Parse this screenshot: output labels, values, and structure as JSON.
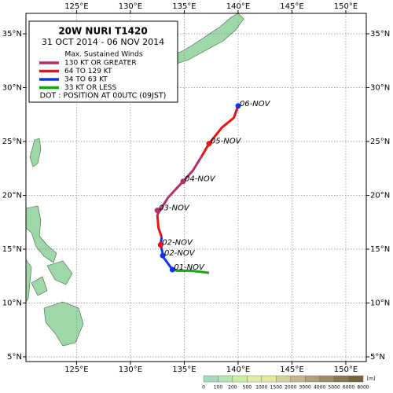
{
  "map": {
    "title": "20W  NURI  T1420",
    "period": "31 OCT 2014 - 06 NOV 2014",
    "legend_title": "Max. Sustained Winds",
    "legend": [
      {
        "name": "130 KT OR GREATER",
        "color": "#b03070"
      },
      {
        "name": "64 TO 129 KT",
        "color": "#ee1111"
      },
      {
        "name": "34 TO 63 KT",
        "color": "#1133ee"
      },
      {
        "name": "33 KT OR LESS",
        "color": "#11aa11"
      }
    ],
    "dot_note": "DOT : POSITION AT 00UTC (09JST)",
    "xlim": [
      120.3,
      151.9
    ],
    "ylim": [
      4.56,
      36.9
    ],
    "xticks": [
      {
        "value": 125,
        "label": "125°E"
      },
      {
        "value": 130,
        "label": "130°E"
      },
      {
        "value": 135,
        "label": "135°E"
      },
      {
        "value": 140,
        "label": "140°E"
      },
      {
        "value": 145,
        "label": "145°E"
      },
      {
        "value": 150,
        "label": "150°E"
      }
    ],
    "yticks": [
      {
        "value": 5,
        "label": "5°N"
      },
      {
        "value": 10,
        "label": "10°N"
      },
      {
        "value": 15,
        "label": "15°N"
      },
      {
        "value": 20,
        "label": "20°N"
      },
      {
        "value": 25,
        "label": "25°N"
      },
      {
        "value": 30,
        "label": "30°N"
      },
      {
        "value": 35,
        "label": "35°N"
      }
    ],
    "track": [
      {
        "color": "#11aa11",
        "lon": [
          137.3,
          136.5,
          135.5,
          134.4,
          133.9
        ],
        "lat": [
          12.8,
          12.9,
          13.0,
          13.0,
          13.1
        ]
      },
      {
        "color": "#1133ee",
        "lon": [
          133.9,
          133.1,
          132.8,
          132.9
        ],
        "lat": [
          13.1,
          14.2,
          15.4,
          16.1
        ]
      },
      {
        "color": "#ee1111",
        "lon": [
          132.9,
          132.6,
          132.5
        ],
        "lat": [
          16.1,
          17.0,
          18.2
        ]
      },
      {
        "color": "#b03070",
        "lon": [
          132.5,
          133.5,
          134.9,
          135.8,
          136.6
        ],
        "lat": [
          18.2,
          19.8,
          21.3,
          22.3,
          23.6
        ]
      },
      {
        "color": "#ee1111",
        "lon": [
          136.6,
          137.3,
          138.5,
          139.6,
          140.0
        ],
        "lat": [
          23.6,
          24.8,
          26.3,
          27.2,
          28.3
        ]
      }
    ],
    "positions": [
      {
        "label": "01-NOV",
        "lon": 133.9,
        "lat": 13.1,
        "color": "#1133ee"
      },
      {
        "label": "02-NOV",
        "lon": 133.0,
        "lat": 14.4,
        "color": "#1133ee"
      },
      {
        "label": "02-NOV",
        "lon": 132.8,
        "lat": 15.4,
        "color": "#ee1111"
      },
      {
        "label": "03-NOV",
        "lon": 132.5,
        "lat": 18.6,
        "color": "#b03070"
      },
      {
        "label": "04-NOV",
        "lon": 134.9,
        "lat": 21.3,
        "color": "#b03070"
      },
      {
        "label": "05-NOV",
        "lon": 137.3,
        "lat": 24.8,
        "color": "#ee1111"
      },
      {
        "label": "06-NOV",
        "lon": 140.0,
        "lat": 28.3,
        "color": "#1133ee"
      }
    ],
    "colorbar": {
      "ticks": [
        0,
        100,
        200,
        500,
        1000,
        1500,
        2000,
        3000,
        4000,
        5000,
        6000,
        8000
      ],
      "unit": "[m]",
      "colors": [
        "#a0dcc0",
        "#b4e6b4",
        "#c8f0a0",
        "#dcf0a0",
        "#e6e6a0",
        "#d8d09a",
        "#c8b48c",
        "#b4a078",
        "#a08c64",
        "#8c7850",
        "#78643c"
      ]
    }
  }
}
